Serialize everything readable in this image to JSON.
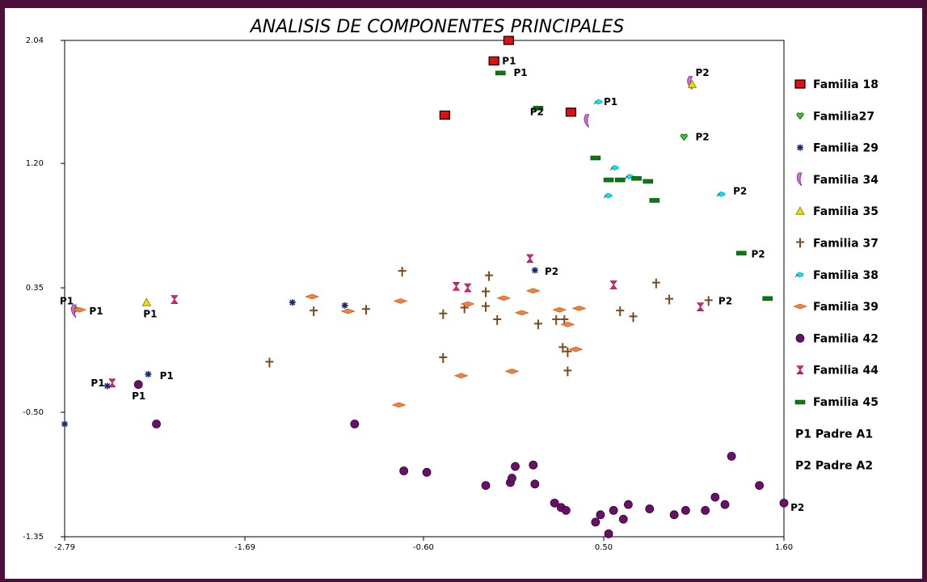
{
  "colors": {
    "frame": "#4a0f3a",
    "f18": "#e01010",
    "f27": "#2bd42b",
    "f29": "#1a2a7a",
    "f34": "#d070e0",
    "f35": "#e8e000",
    "f37": "#7a4a1a",
    "f38": "#00e8f0",
    "f39": "#f08040",
    "f42": "#6a0f6a",
    "f44": "#e0207a",
    "f45": "#0a7a10"
  },
  "chart_data": {
    "type": "scatter",
    "title": "ANALISIS DE COMPONENTES PRINCIPALES",
    "xlabel": "",
    "ylabel": "",
    "xlim": [
      -2.79,
      1.6
    ],
    "ylim": [
      -1.35,
      2.04
    ],
    "xticks": [
      "-2.79",
      "-1.69",
      "-0.60",
      "0.50",
      "1.60"
    ],
    "yticks": [
      "2.04",
      "1.20",
      "0.35",
      "-0.50",
      "-1.35"
    ],
    "grid": false,
    "legend_position": "right",
    "series": [
      {
        "name": "Familia 18",
        "marker": "square",
        "color_key": "f18",
        "points": [
          [
            -0.08,
            2.04
          ],
          [
            -0.17,
            1.9
          ],
          [
            -0.47,
            1.53
          ],
          [
            0.3,
            1.55
          ]
        ]
      },
      {
        "name": "Familia27",
        "marker": "heart",
        "color_key": "f27",
        "points": [
          [
            -2.73,
            0.2
          ],
          [
            0.99,
            1.38
          ]
        ]
      },
      {
        "name": "Familia 29",
        "marker": "asterisk",
        "color_key": "f29",
        "points": [
          [
            -2.79,
            -0.58
          ],
          [
            -2.53,
            -0.32
          ],
          [
            -2.28,
            -0.24
          ],
          [
            -1.4,
            0.25
          ],
          [
            -1.08,
            0.23
          ],
          [
            0.08,
            0.47
          ]
        ]
      },
      {
        "name": "Familia 34",
        "marker": "crescent",
        "color_key": "f34",
        "points": [
          [
            -2.73,
            0.19
          ],
          [
            1.03,
            1.75
          ],
          [
            0.4,
            1.49
          ]
        ]
      },
      {
        "name": "Familia 35",
        "marker": "triangle",
        "color_key": "f35",
        "points": [
          [
            -2.29,
            0.25
          ],
          [
            1.04,
            1.74
          ]
        ]
      },
      {
        "name": "Familia 37",
        "marker": "cross",
        "color_key": "f37",
        "points": [
          [
            -0.73,
            0.46
          ],
          [
            -0.48,
            -0.13
          ],
          [
            -0.48,
            0.17
          ],
          [
            -0.35,
            0.21
          ],
          [
            -0.22,
            0.22
          ],
          [
            -0.22,
            0.32
          ],
          [
            -0.15,
            0.13
          ],
          [
            -0.2,
            0.43
          ],
          [
            -0.95,
            0.2
          ],
          [
            -1.27,
            0.19
          ],
          [
            -1.54,
            -0.16
          ],
          [
            0.1,
            0.1
          ],
          [
            0.21,
            0.13
          ],
          [
            0.26,
            0.13
          ],
          [
            0.28,
            -0.09
          ],
          [
            0.28,
            -0.22
          ],
          [
            0.68,
            0.15
          ],
          [
            0.6,
            0.19
          ],
          [
            0.82,
            0.38
          ],
          [
            1.14,
            0.26
          ],
          [
            0.9,
            0.27
          ],
          [
            0.25,
            -0.06
          ]
        ]
      },
      {
        "name": "Familia 38",
        "marker": "fish",
        "color_key": "f38",
        "points": [
          [
            0.47,
            1.62
          ],
          [
            0.57,
            1.17
          ],
          [
            0.66,
            1.11
          ],
          [
            0.53,
            0.98
          ],
          [
            1.22,
            0.99
          ]
        ]
      },
      {
        "name": "Familia 39",
        "marker": "diamond",
        "color_key": "f39",
        "points": [
          [
            -2.7,
            0.2
          ],
          [
            -1.28,
            0.29
          ],
          [
            -1.06,
            0.19
          ],
          [
            -0.74,
            0.26
          ],
          [
            -0.33,
            0.24
          ],
          [
            -0.11,
            0.28
          ],
          [
            0.07,
            0.33
          ],
          [
            -0.06,
            -0.22
          ],
          [
            0.0,
            0.18
          ],
          [
            0.23,
            0.2
          ],
          [
            0.35,
            0.21
          ],
          [
            0.28,
            0.1
          ],
          [
            0.33,
            -0.07
          ],
          [
            -0.75,
            -0.45
          ],
          [
            -0.37,
            -0.25
          ]
        ]
      },
      {
        "name": "Familia 42",
        "marker": "circle",
        "color_key": "f42",
        "points": [
          [
            -2.34,
            -0.31
          ],
          [
            -2.23,
            -0.58
          ],
          [
            -1.02,
            -0.58
          ],
          [
            -0.72,
            -0.9
          ],
          [
            -0.58,
            -0.91
          ],
          [
            -0.22,
            -1.0
          ],
          [
            -0.07,
            -0.98
          ],
          [
            -0.06,
            -0.95
          ],
          [
            -0.04,
            -0.87
          ],
          [
            0.07,
            -0.86
          ],
          [
            0.08,
            -0.99
          ],
          [
            0.2,
            -1.12
          ],
          [
            0.24,
            -1.15
          ],
          [
            0.27,
            -1.17
          ],
          [
            0.45,
            -1.25
          ],
          [
            0.53,
            -1.33
          ],
          [
            0.56,
            -1.17
          ],
          [
            0.65,
            -1.13
          ],
          [
            0.78,
            -1.16
          ],
          [
            0.93,
            -1.2
          ],
          [
            1.0,
            -1.17
          ],
          [
            1.12,
            -1.17
          ],
          [
            1.18,
            -1.08
          ],
          [
            1.24,
            -1.13
          ],
          [
            1.28,
            -0.8
          ],
          [
            1.45,
            -1.0
          ],
          [
            1.6,
            -1.12
          ],
          [
            0.62,
            -1.23
          ],
          [
            0.48,
            -1.2
          ]
        ]
      },
      {
        "name": "Familia 44",
        "marker": "hourglass",
        "color_key": "f44",
        "points": [
          [
            -2.5,
            -0.3
          ],
          [
            -2.12,
            0.27
          ],
          [
            -0.4,
            0.36
          ],
          [
            -0.33,
            0.35
          ],
          [
            0.05,
            0.55
          ],
          [
            0.56,
            0.37
          ],
          [
            1.09,
            0.22
          ]
        ]
      },
      {
        "name": "Familia 45",
        "marker": "flag",
        "color_key": "f45",
        "points": [
          [
            -0.13,
            1.82
          ],
          [
            0.1,
            1.58
          ],
          [
            0.45,
            1.24
          ],
          [
            0.53,
            1.09
          ],
          [
            0.6,
            1.09
          ],
          [
            0.7,
            1.1
          ],
          [
            0.77,
            1.08
          ],
          [
            0.81,
            0.95
          ],
          [
            1.34,
            0.59
          ],
          [
            1.5,
            0.28
          ]
        ]
      }
    ],
    "annotations": [
      {
        "text": "P1",
        "x": -0.12,
        "y": 1.9
      },
      {
        "text": "P1",
        "x": -0.05,
        "y": 1.82
      },
      {
        "text": "P2",
        "x": 0.05,
        "y": 1.55
      },
      {
        "text": "P1",
        "x": 0.5,
        "y": 1.62
      },
      {
        "text": "P2",
        "x": 1.06,
        "y": 1.82
      },
      {
        "text": "P2",
        "x": 1.06,
        "y": 1.38
      },
      {
        "text": "P2",
        "x": 1.29,
        "y": 1.01
      },
      {
        "text": "P2",
        "x": 0.14,
        "y": 0.46
      },
      {
        "text": "P2",
        "x": 1.4,
        "y": 0.58
      },
      {
        "text": "P2",
        "x": 1.2,
        "y": 0.26
      },
      {
        "text": "P1",
        "x": -2.82,
        "y": 0.26
      },
      {
        "text": "P1",
        "x": -2.64,
        "y": 0.19
      },
      {
        "text": "P1",
        "x": -2.31,
        "y": 0.17
      },
      {
        "text": "P1",
        "x": -2.63,
        "y": -0.3
      },
      {
        "text": "P1",
        "x": -2.21,
        "y": -0.25
      },
      {
        "text": "P1",
        "x": -2.38,
        "y": -0.39
      },
      {
        "text": "P2",
        "x": 1.64,
        "y": -1.15
      }
    ],
    "legend_extra": [
      "P1  Padre A1",
      "P2  Padre A2"
    ]
  }
}
